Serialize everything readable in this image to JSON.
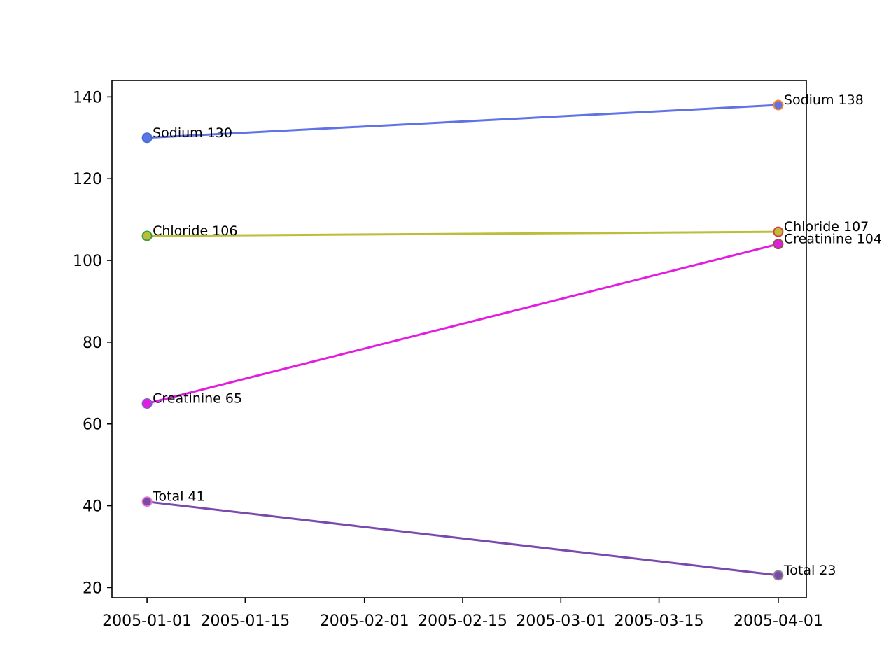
{
  "chart_data": {
    "type": "line",
    "title": "",
    "xlabel": "",
    "ylabel": "",
    "x_type": "date",
    "xlim": [
      "2004-12-27",
      "2005-04-05"
    ],
    "ylim": [
      17.5,
      144
    ],
    "x_ticks": [
      "2005-01-01",
      "2005-01-15",
      "2005-02-01",
      "2005-02-15",
      "2005-03-01",
      "2005-03-15",
      "2005-04-01"
    ],
    "y_ticks": [
      20,
      40,
      60,
      80,
      100,
      120,
      140
    ],
    "grid": false,
    "legend": "none",
    "series": [
      {
        "color": "#5f73e6",
        "marker_colors": [
          "#3e6fd1",
          "#f5862e"
        ],
        "points": [
          {
            "x": "2005-01-01",
            "y": 130,
            "label": "Sodium 130"
          },
          {
            "x": "2005-04-01",
            "y": 138,
            "label": "Sodium 138"
          }
        ]
      },
      {
        "color": "#bcbd3a",
        "marker_colors": [
          "#3aa03a",
          "#d84040"
        ],
        "points": [
          {
            "x": "2005-01-01",
            "y": 106,
            "label": "Chloride 106"
          },
          {
            "x": "2005-04-01",
            "y": 107,
            "label": "Chloride 107"
          }
        ]
      },
      {
        "color": "#e21de0",
        "marker_colors": [
          "#8a55c8",
          "#8c564b"
        ],
        "points": [
          {
            "x": "2005-01-01",
            "y": 65,
            "label": "Creatinine 65"
          },
          {
            "x": "2005-04-01",
            "y": 104,
            "label": "Creatinine 104"
          }
        ]
      },
      {
        "color": "#7b49ae",
        "marker_colors": [
          "#e377c2",
          "#8b8b8b"
        ],
        "points": [
          {
            "x": "2005-01-01",
            "y": 41,
            "label": "Total 41"
          },
          {
            "x": "2005-04-01",
            "y": 23,
            "label": "Total 23"
          }
        ]
      }
    ]
  }
}
